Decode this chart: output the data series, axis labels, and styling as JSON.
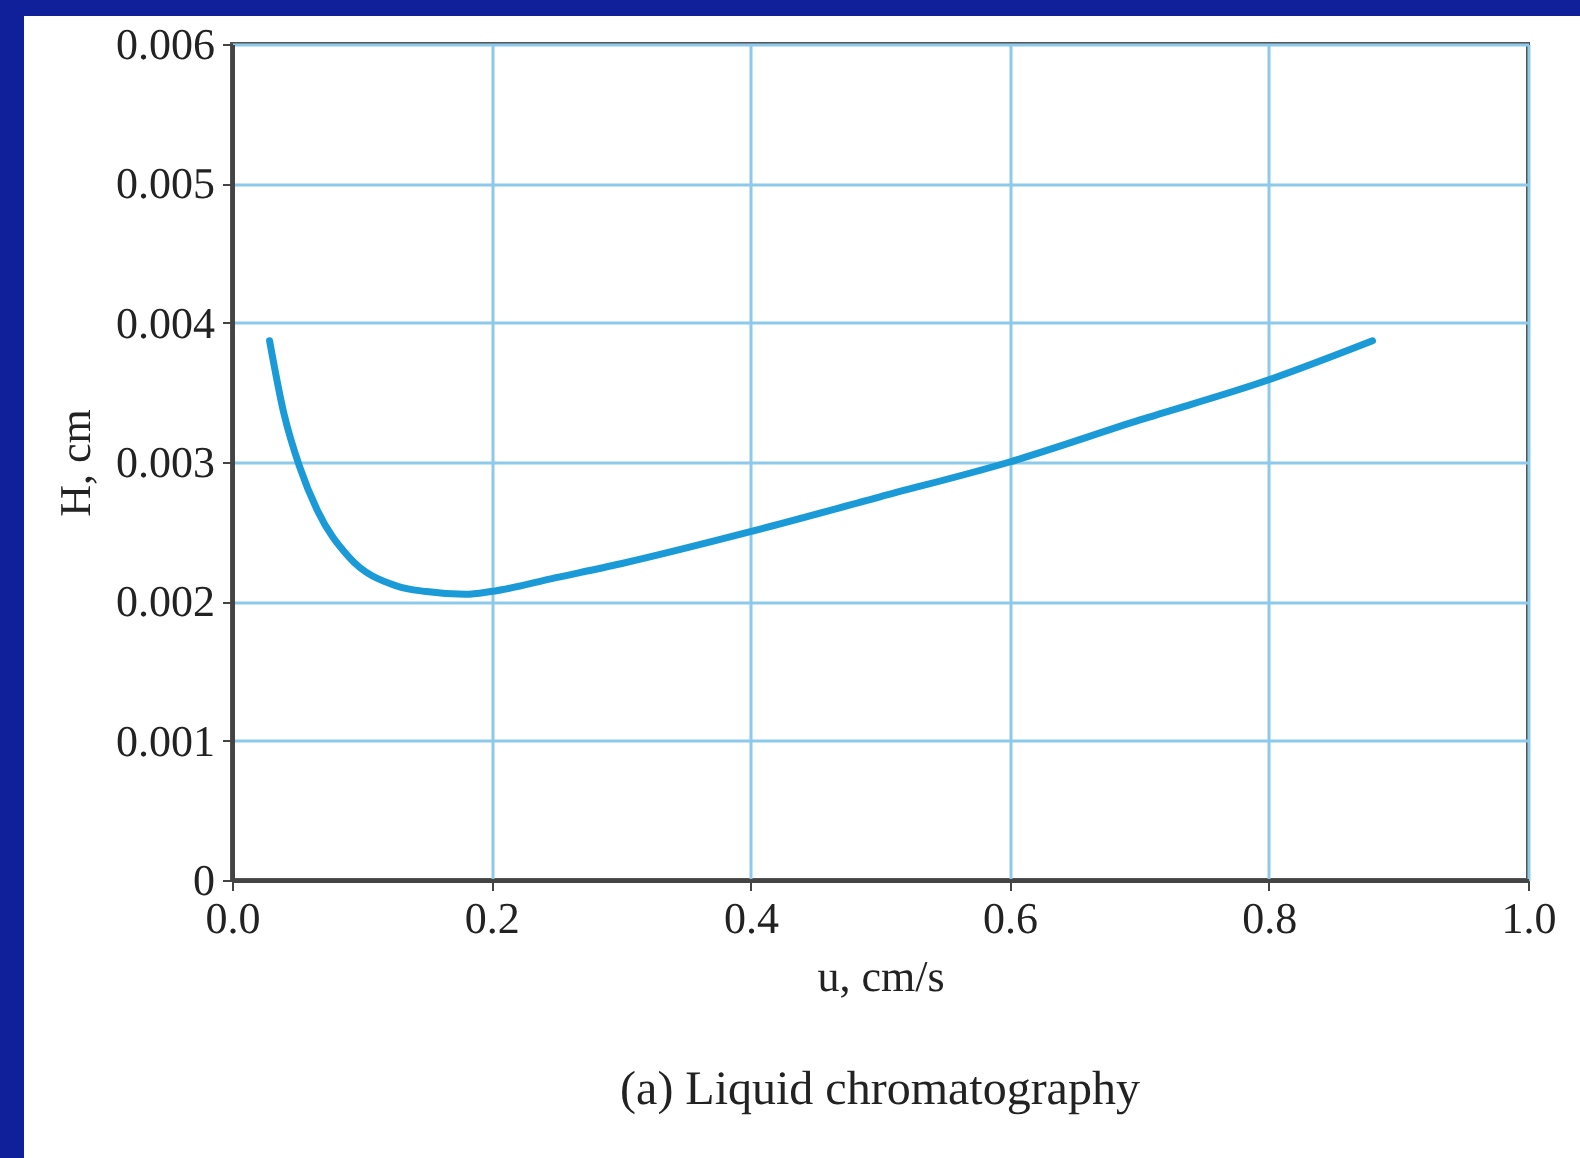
{
  "chart_data": {
    "type": "line",
    "xlabel": "u, cm/s",
    "ylabel": "H, cm",
    "annotations": [
      "(a) Liquid chromatography"
    ],
    "x": [
      0.029,
      0.04,
      0.052,
      0.066,
      0.09,
      0.127,
      0.15,
      0.18,
      0.2,
      0.25,
      0.3,
      0.4,
      0.5,
      0.6,
      0.7,
      0.8,
      0.88
    ],
    "series": [
      {
        "color": "#1b9ad8",
        "values": [
          0.00387,
          0.00335,
          0.00297,
          0.00265,
          0.00232,
          0.00211,
          0.00207,
          0.00205,
          0.00207,
          0.00217,
          0.00227,
          0.0025,
          0.00275,
          0.003,
          0.0033,
          0.00359,
          0.00387
        ]
      }
    ],
    "xlim": [
      0,
      1
    ],
    "xticks": [
      {
        "value": 0,
        "label": "0.0"
      },
      0.2,
      0.4,
      0.6,
      0.8,
      {
        "value": 1,
        "label": "1.0"
      }
    ],
    "ylim": [
      0,
      0.006
    ],
    "yticks": [
      0,
      0.001,
      0.002,
      0.003,
      0.004,
      0.005,
      0.006
    ],
    "grid": true,
    "line_style": "solid",
    "marker": "none"
  }
}
